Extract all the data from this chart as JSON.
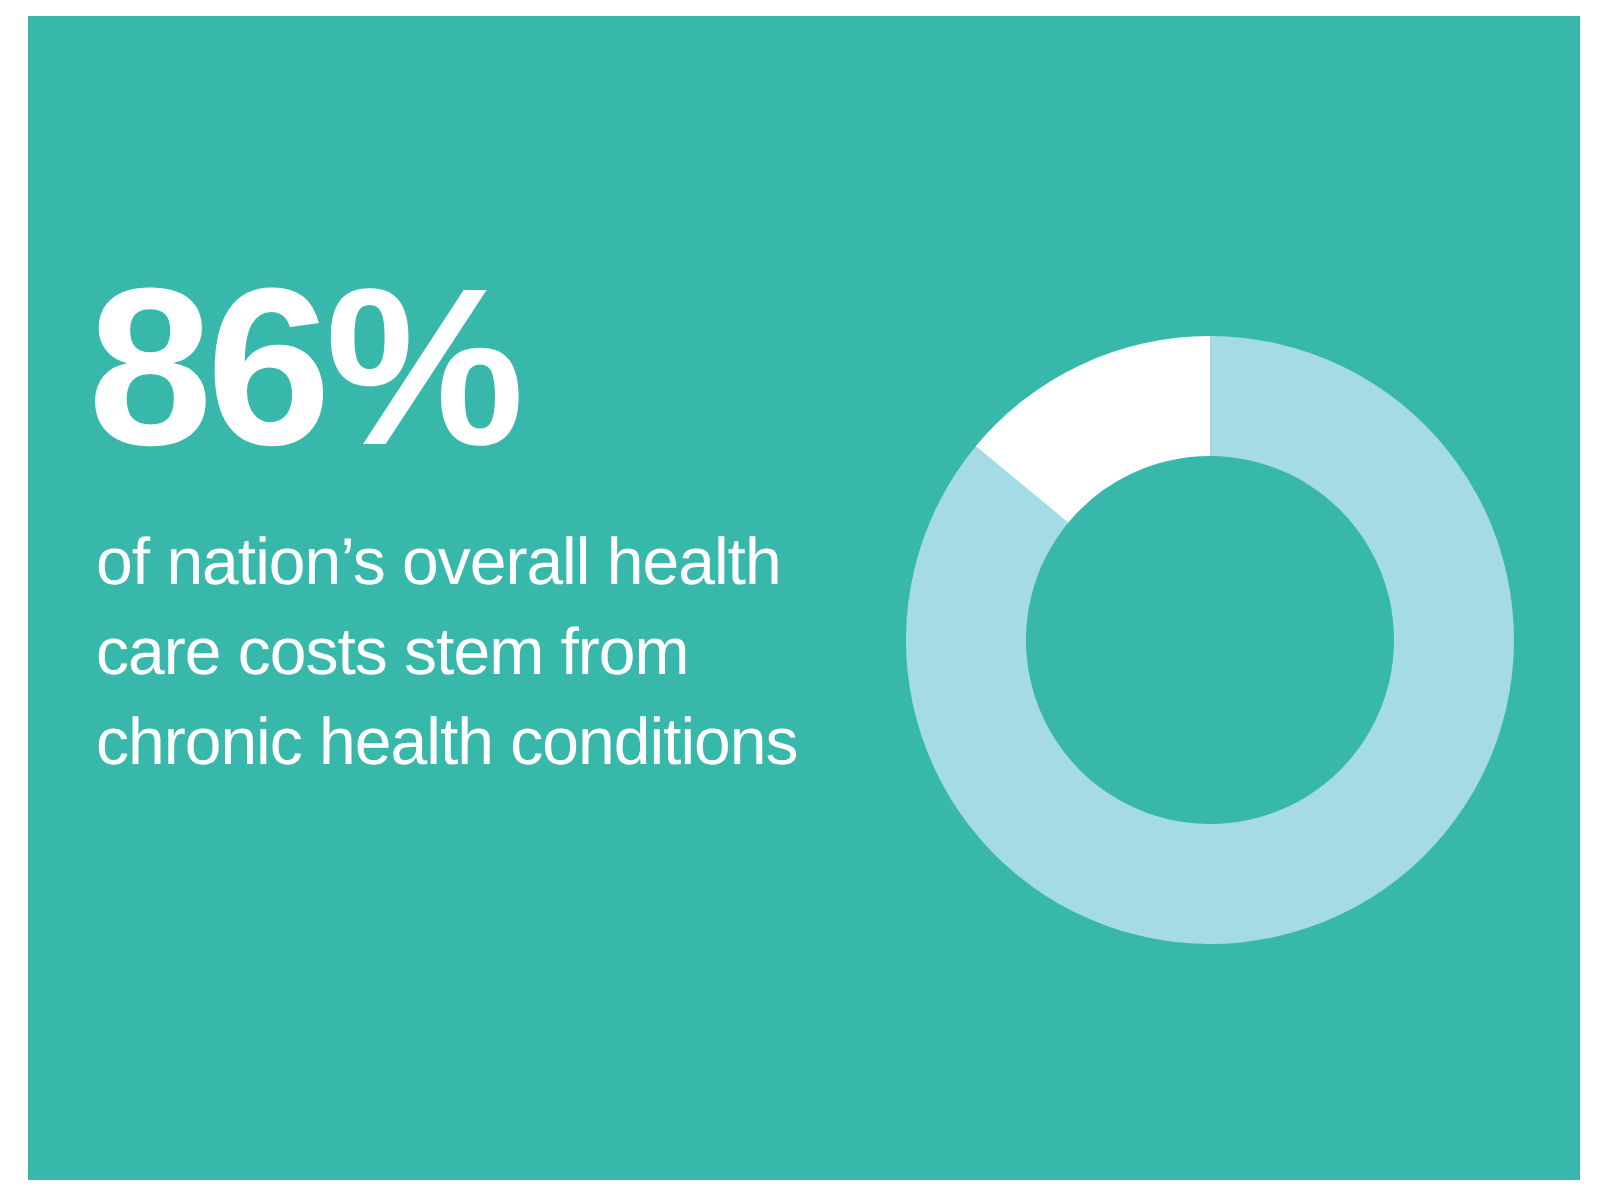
{
  "chart_data": {
    "type": "donut",
    "title": "86%",
    "subtitle": "of nation’s overall health care costs stem from chronic health conditions",
    "categories": [
      null,
      null
    ],
    "values": [
      86,
      14
    ],
    "colors": [
      "#a5dbe6",
      "#ffffff"
    ]
  }
}
